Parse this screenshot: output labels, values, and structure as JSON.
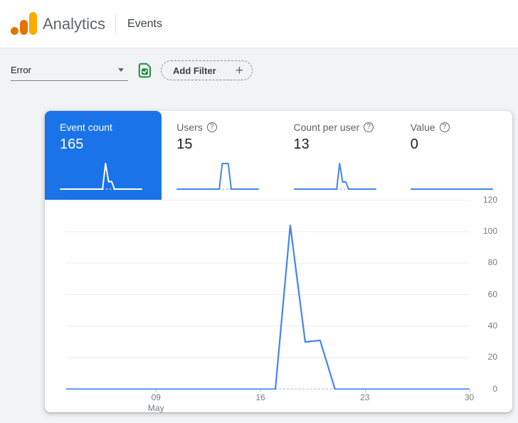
{
  "header": {
    "brand": "Analytics",
    "page": "Events"
  },
  "filter_bar": {
    "dimension_value": "Error",
    "add_filter_label": "Add Filter"
  },
  "icons": {
    "plus": "+",
    "help": "?"
  },
  "colors": {
    "selected_tab_bg": "#1a73e8",
    "line": "#4285f4",
    "dotted": "#a6c8fa",
    "spark_selected_line": "#ffffff",
    "gridline": "#ecedef",
    "logo_orange": "#f9ab00",
    "logo_dark_orange": "#e37400",
    "green_icon": "#1e8e3e"
  },
  "metric_cards": [
    {
      "label": "Event count",
      "value": "165",
      "selected": true,
      "has_help": false,
      "spark_values": [
        0,
        0,
        0,
        0,
        0,
        0,
        0,
        0,
        0,
        0,
        0,
        0,
        0,
        0,
        0,
        104,
        30,
        31,
        0,
        0,
        0,
        0,
        0,
        0,
        0,
        0,
        0,
        0
      ]
    },
    {
      "label": "Users",
      "value": "15",
      "selected": false,
      "has_help": true,
      "spark_values": [
        0,
        0,
        0,
        0,
        0,
        0,
        0,
        0,
        0,
        0,
        0,
        0,
        0,
        0,
        0,
        15,
        15,
        15,
        0,
        0,
        0,
        0,
        0,
        0,
        0,
        0,
        0,
        0
      ]
    },
    {
      "label": "Count per user",
      "value": "13",
      "selected": false,
      "has_help": true,
      "spark_values": [
        0,
        0,
        0,
        0,
        0,
        0,
        0,
        0,
        0,
        0,
        0,
        0,
        0,
        0,
        0,
        7.4,
        2,
        2.1,
        0,
        0,
        0,
        0,
        0,
        0,
        0,
        0,
        0,
        0
      ]
    },
    {
      "label": "Value",
      "value": "0",
      "selected": false,
      "has_help": true,
      "spark_values": [
        0,
        0,
        0,
        0,
        0,
        0,
        0,
        0,
        0,
        0,
        0,
        0,
        0,
        0,
        0,
        0,
        0,
        0,
        0,
        0,
        0,
        0,
        0,
        0,
        0,
        0,
        0,
        0
      ]
    }
  ],
  "chart_data": {
    "type": "line",
    "title": "",
    "xlabel": "",
    "ylabel": "",
    "x": [
      "May 3",
      "May 4",
      "May 5",
      "May 6",
      "May 7",
      "May 8",
      "May 9",
      "May 10",
      "May 11",
      "May 12",
      "May 13",
      "May 14",
      "May 15",
      "May 16",
      "May 17",
      "May 18",
      "May 19",
      "May 20",
      "May 21",
      "May 22",
      "May 23",
      "May 24",
      "May 25",
      "May 26",
      "May 27",
      "May 28",
      "May 29",
      "May 30"
    ],
    "values": [
      0,
      0,
      0,
      0,
      0,
      0,
      0,
      0,
      0,
      0,
      0,
      0,
      0,
      0,
      0,
      104,
      30,
      31,
      0,
      0,
      0,
      0,
      0,
      0,
      0,
      0,
      0,
      0
    ],
    "ylim": [
      0,
      120
    ],
    "yticks": [
      0,
      20,
      40,
      60,
      80,
      100,
      120
    ],
    "xticks": [
      {
        "index": 6,
        "label": "09",
        "sub": "May"
      },
      {
        "index": 13,
        "label": "16",
        "sub": ""
      },
      {
        "index": 20,
        "label": "23",
        "sub": ""
      },
      {
        "index": 27,
        "label": "30",
        "sub": ""
      }
    ],
    "grid": true,
    "legend": false,
    "dashed_zero_segment_dates": [
      "May 17",
      "May 21"
    ]
  }
}
